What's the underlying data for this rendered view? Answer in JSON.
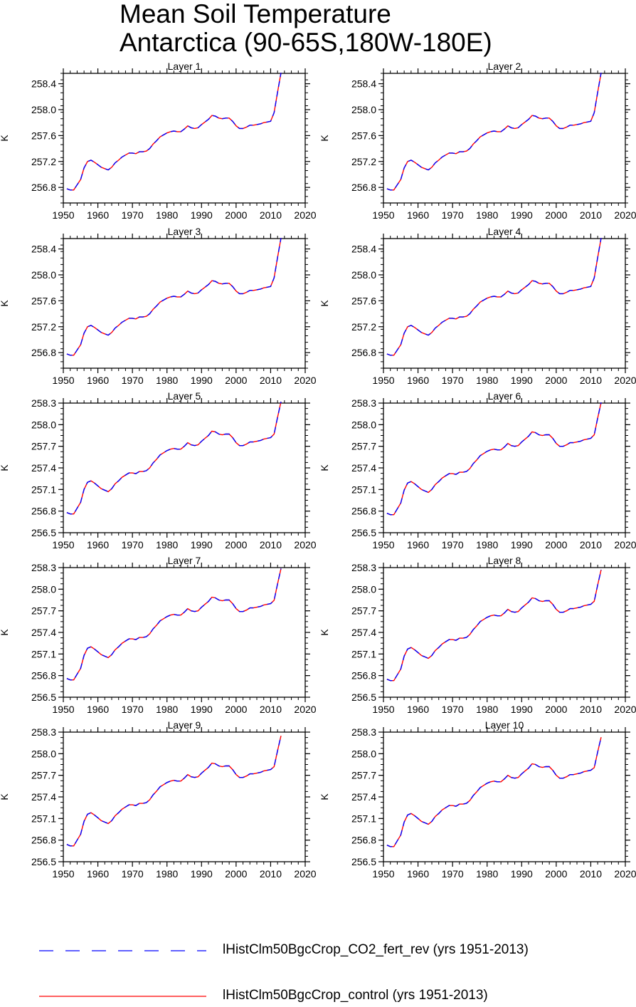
{
  "title": {
    "line1": "Mean Soil Temperature",
    "line2": "Antarctica (90-65S,180W-180E)"
  },
  "legend": [
    {
      "label": "lHistClm50BgcCrop_CO2_fert_rev (yrs 1951-2013)",
      "color": "#0000ff",
      "style": "dashed"
    },
    {
      "label": "lHistClm50BgcCrop_control (yrs 1951-2013)",
      "color": "#ff0000",
      "style": "solid"
    }
  ],
  "chart_data": [
    {
      "type": "line",
      "title": "Layer 1",
      "ylabel": "K",
      "xlim": [
        1950,
        2020
      ],
      "ylim": [
        256.56,
        258.56
      ],
      "xticks": [
        1950,
        1960,
        1970,
        1980,
        1990,
        2000,
        2010,
        2020
      ],
      "xticklabels": [
        "1950",
        "1960",
        "1970",
        "1980",
        "1990",
        "2000",
        "2010",
        "2020"
      ],
      "yticks": [
        256.8,
        257.2,
        257.6,
        258.0,
        258.4
      ],
      "yticklabels": [
        "256.8",
        "257.2",
        "257.6",
        "258.0",
        "258.4"
      ],
      "offset": 0.0,
      "topscale": 1.0,
      "series": [
        {
          "name": "lHistClm50BgcCrop_CO2_fert_rev (yrs 1951-2013)"
        },
        {
          "name": "lHistClm50BgcCrop_control (yrs 1951-2013)"
        }
      ]
    },
    {
      "type": "line",
      "title": "Layer 2",
      "ylabel": "K",
      "xlim": [
        1950,
        2020
      ],
      "ylim": [
        256.56,
        258.56
      ],
      "xticks": [
        1950,
        1960,
        1970,
        1980,
        1990,
        2000,
        2010,
        2020
      ],
      "xticklabels": [
        "1950",
        "1960",
        "1970",
        "1980",
        "1990",
        "2000",
        "2010",
        "2020"
      ],
      "yticks": [
        256.8,
        257.2,
        257.6,
        258.0,
        258.4
      ],
      "yticklabels": [
        "256.8",
        "257.2",
        "257.6",
        "258.0",
        "258.4"
      ],
      "offset": 0.0,
      "topscale": 1.0,
      "series": [
        {
          "name": "lHistClm50BgcCrop_CO2_fert_rev (yrs 1951-2013)"
        },
        {
          "name": "lHistClm50BgcCrop_control (yrs 1951-2013)"
        }
      ]
    },
    {
      "type": "line",
      "title": "Layer 3",
      "ylabel": "K",
      "xlim": [
        1950,
        2020
      ],
      "ylim": [
        256.56,
        258.56
      ],
      "xticks": [
        1950,
        1960,
        1970,
        1980,
        1990,
        2000,
        2010,
        2020
      ],
      "xticklabels": [
        "1950",
        "1960",
        "1970",
        "1980",
        "1990",
        "2000",
        "2010",
        "2020"
      ],
      "yticks": [
        256.8,
        257.2,
        257.6,
        258.0,
        258.4
      ],
      "yticklabels": [
        "256.8",
        "257.2",
        "257.6",
        "258.0",
        "258.4"
      ],
      "offset": 0.0,
      "topscale": 1.0,
      "series": [
        {
          "name": "lHistClm50BgcCrop_CO2_fert_rev (yrs 1951-2013)"
        },
        {
          "name": "lHistClm50BgcCrop_control (yrs 1951-2013)"
        }
      ]
    },
    {
      "type": "line",
      "title": "Layer 4",
      "ylabel": "K",
      "xlim": [
        1950,
        2020
      ],
      "ylim": [
        256.56,
        258.56
      ],
      "xticks": [
        1950,
        1960,
        1970,
        1980,
        1990,
        2000,
        2010,
        2020
      ],
      "xticklabels": [
        "1950",
        "1960",
        "1970",
        "1980",
        "1990",
        "2000",
        "2010",
        "2020"
      ],
      "yticks": [
        256.8,
        257.2,
        257.6,
        258.0,
        258.4
      ],
      "yticklabels": [
        "256.8",
        "257.2",
        "257.6",
        "258.0",
        "258.4"
      ],
      "offset": 0.0,
      "topscale": 1.0,
      "series": [
        {
          "name": "lHistClm50BgcCrop_CO2_fert_rev (yrs 1951-2013)"
        },
        {
          "name": "lHistClm50BgcCrop_control (yrs 1951-2013)"
        }
      ]
    },
    {
      "type": "line",
      "title": "Layer 5",
      "ylabel": "K",
      "xlim": [
        1950,
        2020
      ],
      "ylim": [
        256.5,
        258.3
      ],
      "xticks": [
        1950,
        1960,
        1970,
        1980,
        1990,
        2000,
        2010,
        2020
      ],
      "xticklabels": [
        "1950",
        "1960",
        "1970",
        "1980",
        "1990",
        "2000",
        "2010",
        "2020"
      ],
      "yticks": [
        256.5,
        256.8,
        257.1,
        257.4,
        257.7,
        258.0,
        258.3
      ],
      "yticklabels": [
        "256.5",
        "256.8",
        "257.1",
        "257.4",
        "257.7",
        "258.0",
        "258.3"
      ],
      "offset": 0.0,
      "topscale": 0.0,
      "series": [
        {
          "name": "lHistClm50BgcCrop_CO2_fert_rev (yrs 1951-2013)"
        },
        {
          "name": "lHistClm50BgcCrop_control (yrs 1951-2013)"
        }
      ]
    },
    {
      "type": "line",
      "title": "Layer 6",
      "ylabel": "K",
      "xlim": [
        1950,
        2020
      ],
      "ylim": [
        256.5,
        258.3
      ],
      "xticks": [
        1950,
        1960,
        1970,
        1980,
        1990,
        2000,
        2010,
        2020
      ],
      "xticklabels": [
        "1950",
        "1960",
        "1970",
        "1980",
        "1990",
        "2000",
        "2010",
        "2020"
      ],
      "yticks": [
        256.5,
        256.8,
        257.1,
        257.4,
        257.7,
        258.0,
        258.3
      ],
      "yticklabels": [
        "256.5",
        "256.8",
        "257.1",
        "257.4",
        "257.7",
        "258.0",
        "258.3"
      ],
      "offset": -0.01,
      "topscale": 0.0,
      "series": [
        {
          "name": "lHistClm50BgcCrop_CO2_fert_rev (yrs 1951-2013)"
        },
        {
          "name": "lHistClm50BgcCrop_control (yrs 1951-2013)"
        }
      ]
    },
    {
      "type": "line",
      "title": "Layer 7",
      "ylabel": "K",
      "xlim": [
        1950,
        2020
      ],
      "ylim": [
        256.5,
        258.3
      ],
      "xticks": [
        1950,
        1960,
        1970,
        1980,
        1990,
        2000,
        2010,
        2020
      ],
      "xticklabels": [
        "1950",
        "1960",
        "1970",
        "1980",
        "1990",
        "2000",
        "2010",
        "2020"
      ],
      "yticks": [
        256.5,
        256.8,
        257.1,
        257.4,
        257.7,
        258.0,
        258.3
      ],
      "yticklabels": [
        "256.5",
        "256.8",
        "257.1",
        "257.4",
        "257.7",
        "258.0",
        "258.3"
      ],
      "offset": -0.02,
      "topscale": -0.05,
      "series": [
        {
          "name": "lHistClm50BgcCrop_CO2_fert_rev (yrs 1951-2013)"
        },
        {
          "name": "lHistClm50BgcCrop_control (yrs 1951-2013)"
        }
      ]
    },
    {
      "type": "line",
      "title": "Layer 8",
      "ylabel": "K",
      "xlim": [
        1950,
        2020
      ],
      "ylim": [
        256.5,
        258.3
      ],
      "xticks": [
        1950,
        1960,
        1970,
        1980,
        1990,
        2000,
        2010,
        2020
      ],
      "xticklabels": [
        "1950",
        "1960",
        "1970",
        "1980",
        "1990",
        "2000",
        "2010",
        "2020"
      ],
      "yticks": [
        256.5,
        256.8,
        257.1,
        257.4,
        257.7,
        258.0,
        258.3
      ],
      "yticklabels": [
        "256.5",
        "256.8",
        "257.1",
        "257.4",
        "257.7",
        "258.0",
        "258.3"
      ],
      "offset": -0.03,
      "topscale": -0.08,
      "series": [
        {
          "name": "lHistClm50BgcCrop_CO2_fert_rev (yrs 1951-2013)"
        },
        {
          "name": "lHistClm50BgcCrop_control (yrs 1951-2013)"
        }
      ]
    },
    {
      "type": "line",
      "title": "Layer 9",
      "ylabel": "K",
      "xlim": [
        1950,
        2020
      ],
      "ylim": [
        256.5,
        258.3
      ],
      "xticks": [
        1950,
        1960,
        1970,
        1980,
        1990,
        2000,
        2010,
        2020
      ],
      "xticklabels": [
        "1950",
        "1960",
        "1970",
        "1980",
        "1990",
        "2000",
        "2010",
        "2020"
      ],
      "yticks": [
        256.5,
        256.8,
        257.1,
        257.4,
        257.7,
        258.0,
        258.3
      ],
      "yticklabels": [
        "256.5",
        "256.8",
        "257.1",
        "257.4",
        "257.7",
        "258.0",
        "258.3"
      ],
      "offset": -0.04,
      "topscale": -0.12,
      "series": [
        {
          "name": "lHistClm50BgcCrop_CO2_fert_rev (yrs 1951-2013)"
        },
        {
          "name": "lHistClm50BgcCrop_control (yrs 1951-2013)"
        }
      ]
    },
    {
      "type": "line",
      "title": "Layer 10",
      "ylabel": "K",
      "xlim": [
        1950,
        2020
      ],
      "ylim": [
        256.5,
        258.3
      ],
      "xticks": [
        1950,
        1960,
        1970,
        1980,
        1990,
        2000,
        2010,
        2020
      ],
      "xticklabels": [
        "1950",
        "1960",
        "1970",
        "1980",
        "1990",
        "2000",
        "2010",
        "2020"
      ],
      "yticks": [
        256.5,
        256.8,
        257.1,
        257.4,
        257.7,
        258.0,
        258.3
      ],
      "yticklabels": [
        "256.5",
        "256.8",
        "257.1",
        "257.4",
        "257.7",
        "258.0",
        "258.3"
      ],
      "offset": -0.05,
      "topscale": -0.16,
      "series": [
        {
          "name": "lHistClm50BgcCrop_CO2_fert_rev (yrs 1951-2013)"
        },
        {
          "name": "lHistClm50BgcCrop_control (yrs 1951-2013)"
        }
      ]
    }
  ],
  "base_series": {
    "x": [
      1951,
      1952,
      1953,
      1954,
      1955,
      1956,
      1957,
      1958,
      1959,
      1960,
      1961,
      1962,
      1963,
      1964,
      1965,
      1966,
      1967,
      1968,
      1969,
      1970,
      1971,
      1972,
      1973,
      1974,
      1975,
      1976,
      1977,
      1978,
      1979,
      1980,
      1981,
      1982,
      1983,
      1984,
      1985,
      1986,
      1987,
      1988,
      1989,
      1990,
      1991,
      1992,
      1993,
      1994,
      1995,
      1996,
      1997,
      1998,
      1999,
      2000,
      2001,
      2002,
      2003,
      2004,
      2005,
      2006,
      2007,
      2008,
      2009,
      2010,
      2011,
      2012,
      2013
    ],
    "y": [
      256.78,
      256.76,
      256.76,
      256.84,
      256.92,
      257.1,
      257.2,
      257.22,
      257.19,
      257.15,
      257.11,
      257.09,
      257.07,
      257.11,
      257.18,
      257.22,
      257.27,
      257.3,
      257.33,
      257.33,
      257.32,
      257.35,
      257.35,
      257.36,
      257.4,
      257.47,
      257.52,
      257.58,
      257.61,
      257.64,
      257.66,
      257.67,
      257.66,
      257.66,
      257.7,
      257.75,
      257.72,
      257.71,
      257.72,
      257.77,
      257.81,
      257.85,
      257.91,
      257.9,
      257.87,
      257.86,
      257.87,
      257.87,
      257.82,
      257.75,
      257.71,
      257.71,
      257.73,
      257.76,
      257.76,
      257.77,
      257.78,
      257.8,
      257.81,
      257.82,
      257.87,
      258.1,
      258.32
    ]
  }
}
